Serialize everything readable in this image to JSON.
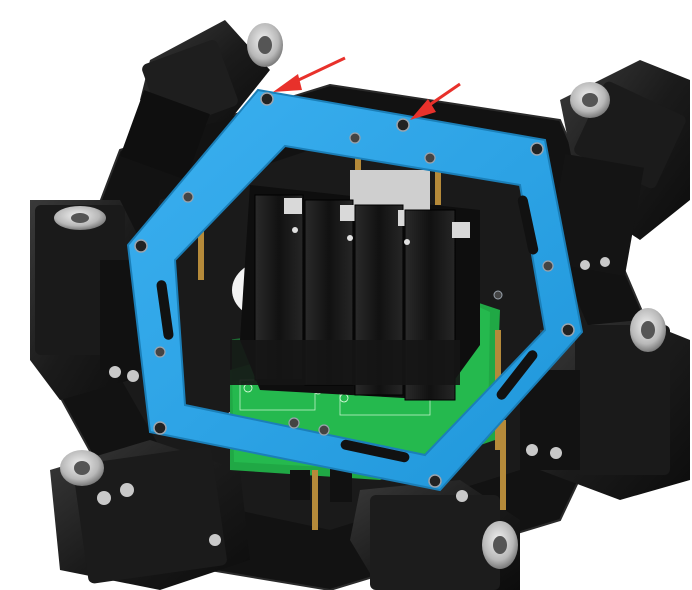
{
  "figure": {
    "background": "#ffffff",
    "colors": {
      "frame": "#2aa3e6",
      "frame_edge": "#1b7fb8",
      "chassis": "#151515",
      "servo": "#1d1d1d",
      "battery": "#1a1a1a",
      "pcb": "#22b34a",
      "arrow": "#e8312b",
      "screw": "#9aa3ad",
      "standoff": "#b58a3a"
    },
    "icons": {
      "annotation": "red-arrow-icon",
      "fastener": "screw-head-icon"
    },
    "pcb_labels": {
      "left": "",
      "right": ""
    }
  }
}
